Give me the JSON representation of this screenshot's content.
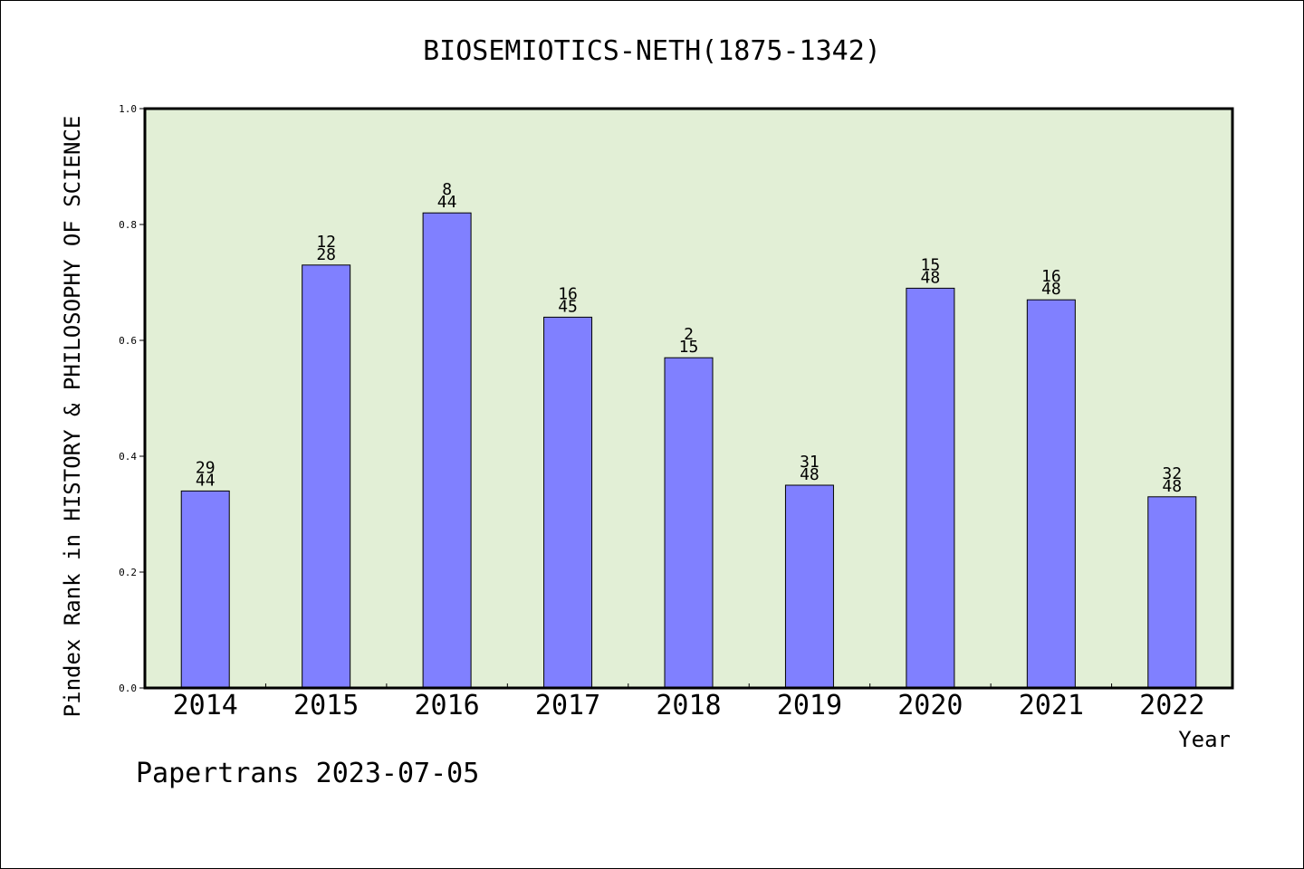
{
  "chart_data": {
    "type": "bar",
    "title": "BIOSEMIOTICS-NETH(1875-1342)",
    "ylabel": "Pindex Rank in HISTORY & PHILOSOPHY OF SCIENCE",
    "xlabel": "Year",
    "categories": [
      "2014",
      "2015",
      "2016",
      "2017",
      "2018",
      "2019",
      "2020",
      "2021",
      "2022"
    ],
    "values": [
      0.34,
      0.73,
      0.82,
      0.64,
      0.57,
      0.35,
      0.69,
      0.67,
      0.33
    ],
    "rank": [
      "29",
      "12",
      "8",
      "16",
      "2",
      "31",
      "15",
      "16",
      "32"
    ],
    "total": [
      "44",
      "28",
      "44",
      "45",
      "15",
      "48",
      "48",
      "48",
      "48"
    ],
    "ylim": [
      0,
      1.0
    ],
    "yticks": [
      "0.0",
      "0.2",
      "0.4",
      "0.6",
      "0.8",
      "1.0"
    ],
    "grid": false,
    "bar_color": "#8080ff",
    "plot_background": "#e2efd6"
  },
  "footer": "Papertrans 2023-07-05"
}
